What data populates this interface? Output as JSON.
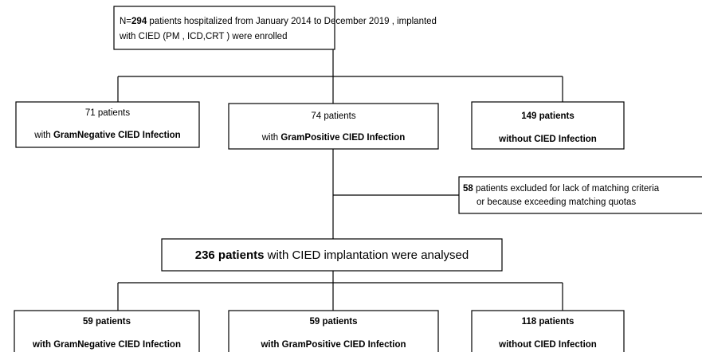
{
  "boxes": [
    {
      "lines": [
        [
          {
            "text": "N=",
            "bold": false
          },
          {
            "text": "294",
            "bold": true
          },
          {
            "text": " patients hospitalized from January 2014 to December 2019 , implanted",
            "bold": false
          }
        ],
        [
          {
            "text": "with CIED (PM , ICD,CRT ) were enrolled",
            "bold": false
          }
        ]
      ]
    },
    {
      "lines": [
        [
          {
            "text": "71 patients",
            "bold": false
          }
        ],
        [
          {
            "text": "with ",
            "bold": false
          },
          {
            "text": "GramNegative CIED Infection",
            "bold": true
          }
        ]
      ]
    },
    {
      "lines": [
        [
          {
            "text": "74 patients",
            "bold": false
          }
        ],
        [
          {
            "text": "with ",
            "bold": false
          },
          {
            "text": "GramPositive CIED Infection",
            "bold": true
          }
        ]
      ]
    },
    {
      "lines": [
        [
          {
            "text": "149 patients",
            "bold": true
          }
        ],
        [
          {
            "text": "without CIED Infection",
            "bold": true
          }
        ]
      ]
    },
    {
      "lines": [
        [
          {
            "text": "58",
            "bold": true
          },
          {
            "text": " patients excluded for lack of matching criteria",
            "bold": false
          }
        ],
        [
          {
            "text": "or because exceeding matching quotas",
            "bold": false
          }
        ]
      ]
    },
    {
      "lines": [
        [
          {
            "text": "236 patients",
            "bold": true
          },
          {
            "text": " with CIED implantation were analysed",
            "bold": false
          }
        ]
      ]
    },
    {
      "lines": [
        [
          {
            "text": "59 patients",
            "bold": true
          }
        ],
        [
          {
            "text": "with GramNegative CIED Infection",
            "bold": true
          }
        ]
      ]
    },
    {
      "lines": [
        [
          {
            "text": "59 patients",
            "bold": true
          }
        ],
        [
          {
            "text": "with GramPositive CIED Infection",
            "bold": true
          }
        ]
      ]
    },
    {
      "lines": [
        [
          {
            "text": "118 patients",
            "bold": true
          }
        ],
        [
          {
            "text": "without CIED Infection",
            "bold": true
          }
        ]
      ]
    }
  ]
}
